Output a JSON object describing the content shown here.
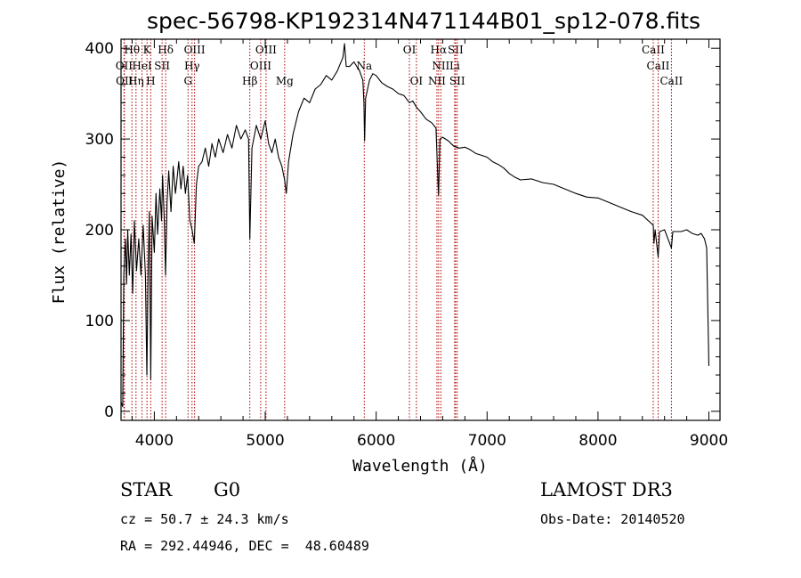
{
  "chart_data": {
    "type": "line",
    "title": "spec-56798-KP192314N471144B01_sp12-078.fits",
    "xlabel": "Wavelength (Å)",
    "ylabel": "Flux (relative)",
    "xlim": [
      3700,
      9100
    ],
    "ylim": [
      -10,
      410
    ],
    "x_ticks": [
      4000,
      5000,
      6000,
      7000,
      8000,
      9000
    ],
    "y_ticks": [
      0,
      100,
      200,
      300,
      400
    ],
    "series": [
      {
        "name": "flux",
        "points": [
          [
            3700,
            10
          ],
          [
            3715,
            5
          ],
          [
            3725,
            150
          ],
          [
            3740,
            190
          ],
          [
            3750,
            140
          ],
          [
            3760,
            200
          ],
          [
            3775,
            150
          ],
          [
            3790,
            195
          ],
          [
            3805,
            130
          ],
          [
            3820,
            210
          ],
          [
            3840,
            155
          ],
          [
            3860,
            190
          ],
          [
            3880,
            150
          ],
          [
            3900,
            205
          ],
          [
            3920,
            150
          ],
          [
            3933,
            40
          ],
          [
            3945,
            160
          ],
          [
            3955,
            220
          ],
          [
            3968,
            35
          ],
          [
            3980,
            215
          ],
          [
            4000,
            175
          ],
          [
            4015,
            240
          ],
          [
            4030,
            195
          ],
          [
            4050,
            245
          ],
          [
            4065,
            210
          ],
          [
            4075,
            260
          ],
          [
            4090,
            210
          ],
          [
            4101,
            150
          ],
          [
            4115,
            230
          ],
          [
            4130,
            265
          ],
          [
            4150,
            220
          ],
          [
            4170,
            270
          ],
          [
            4190,
            240
          ],
          [
            4200,
            250
          ],
          [
            4220,
            275
          ],
          [
            4240,
            245
          ],
          [
            4260,
            270
          ],
          [
            4280,
            240
          ],
          [
            4300,
            260
          ],
          [
            4320,
            210
          ],
          [
            4340,
            200
          ],
          [
            4360,
            185
          ],
          [
            4380,
            250
          ],
          [
            4400,
            270
          ],
          [
            4430,
            275
          ],
          [
            4460,
            290
          ],
          [
            4490,
            270
          ],
          [
            4520,
            295
          ],
          [
            4550,
            280
          ],
          [
            4580,
            300
          ],
          [
            4620,
            285
          ],
          [
            4660,
            305
          ],
          [
            4700,
            290
          ],
          [
            4740,
            315
          ],
          [
            4780,
            300
          ],
          [
            4820,
            310
          ],
          [
            4850,
            300
          ],
          [
            4861,
            190
          ],
          [
            4880,
            290
          ],
          [
            4920,
            315
          ],
          [
            4960,
            300
          ],
          [
            5000,
            320
          ],
          [
            5030,
            295
          ],
          [
            5060,
            285
          ],
          [
            5090,
            300
          ],
          [
            5120,
            280
          ],
          [
            5150,
            270
          ],
          [
            5175,
            255
          ],
          [
            5190,
            240
          ],
          [
            5210,
            275
          ],
          [
            5250,
            305
          ],
          [
            5300,
            330
          ],
          [
            5350,
            345
          ],
          [
            5400,
            340
          ],
          [
            5450,
            355
          ],
          [
            5500,
            360
          ],
          [
            5550,
            370
          ],
          [
            5600,
            365
          ],
          [
            5650,
            375
          ],
          [
            5700,
            390
          ],
          [
            5715,
            405
          ],
          [
            5730,
            380
          ],
          [
            5760,
            380
          ],
          [
            5800,
            385
          ],
          [
            5850,
            375
          ],
          [
            5880,
            365
          ],
          [
            5890,
            340
          ],
          [
            5896,
            298
          ],
          [
            5905,
            345
          ],
          [
            5940,
            365
          ],
          [
            5970,
            372
          ],
          [
            6000,
            370
          ],
          [
            6050,
            362
          ],
          [
            6100,
            358
          ],
          [
            6150,
            355
          ],
          [
            6200,
            350
          ],
          [
            6250,
            348
          ],
          [
            6300,
            340
          ],
          [
            6330,
            342
          ],
          [
            6363,
            335
          ],
          [
            6400,
            330
          ],
          [
            6450,
            322
          ],
          [
            6500,
            318
          ],
          [
            6540,
            312
          ],
          [
            6560,
            245
          ],
          [
            6563,
            238
          ],
          [
            6575,
            300
          ],
          [
            6600,
            302
          ],
          [
            6650,
            298
          ],
          [
            6700,
            292
          ],
          [
            6750,
            290
          ],
          [
            6800,
            291
          ],
          [
            6850,
            288
          ],
          [
            6900,
            284
          ],
          [
            6950,
            282
          ],
          [
            7000,
            280
          ],
          [
            7050,
            275
          ],
          [
            7100,
            272
          ],
          [
            7150,
            268
          ],
          [
            7200,
            262
          ],
          [
            7250,
            258
          ],
          [
            7300,
            255
          ],
          [
            7400,
            256
          ],
          [
            7500,
            252
          ],
          [
            7600,
            250
          ],
          [
            7700,
            245
          ],
          [
            7800,
            240
          ],
          [
            7900,
            236
          ],
          [
            8000,
            235
          ],
          [
            8100,
            230
          ],
          [
            8200,
            225
          ],
          [
            8300,
            220
          ],
          [
            8400,
            216
          ],
          [
            8498,
            205
          ],
          [
            8505,
            185
          ],
          [
            8515,
            200
          ],
          [
            8542,
            170
          ],
          [
            8555,
            198
          ],
          [
            8600,
            200
          ],
          [
            8662,
            180
          ],
          [
            8675,
            198
          ],
          [
            8750,
            198
          ],
          [
            8800,
            200
          ],
          [
            8850,
            196
          ],
          [
            8900,
            194
          ],
          [
            8930,
            196
          ],
          [
            8960,
            190
          ],
          [
            8980,
            180
          ],
          [
            9000,
            50
          ]
        ]
      }
    ],
    "line_markers": [
      {
        "label": "Hθ",
        "x": 3798,
        "row": 1
      },
      {
        "label": "K",
        "x": 3934,
        "row": 1
      },
      {
        "label": "Hδ",
        "x": 4102,
        "row": 1
      },
      {
        "label": "OIII",
        "x": 4363,
        "row": 1
      },
      {
        "label": "OIII",
        "x": 5007,
        "row": 1
      },
      {
        "label": "OI",
        "x": 6300,
        "row": 1
      },
      {
        "label": "Hα",
        "x": 6563,
        "row": 1
      },
      {
        "label": "SII",
        "x": 6716,
        "row": 1
      },
      {
        "label": "CaII",
        "x": 8498,
        "row": 1
      },
      {
        "label": "OII",
        "x": 3727,
        "row": 2
      },
      {
        "label": "HeI",
        "x": 3889,
        "row": 2
      },
      {
        "label": "SII",
        "x": 4070,
        "row": 2
      },
      {
        "label": "Hγ",
        "x": 4340,
        "row": 2
      },
      {
        "label": "OIII",
        "x": 4959,
        "row": 2
      },
      {
        "label": "Na",
        "x": 5893,
        "row": 2
      },
      {
        "label": "NII",
        "x": 6583,
        "row": 2
      },
      {
        "label": "Li",
        "x": 6708,
        "row": 2
      },
      {
        "label": "CaII",
        "x": 8542,
        "row": 2
      },
      {
        "label": "OII",
        "x": 3730,
        "row": 3
      },
      {
        "label": "Hη",
        "x": 3835,
        "row": 3
      },
      {
        "label": "H",
        "x": 3968,
        "row": 3
      },
      {
        "label": "G",
        "x": 4304,
        "row": 3
      },
      {
        "label": "Hβ",
        "x": 4861,
        "row": 3
      },
      {
        "label": "Mg",
        "x": 5175,
        "row": 3
      },
      {
        "label": "OI",
        "x": 6363,
        "row": 3
      },
      {
        "label": "NII",
        "x": 6548,
        "row": 3
      },
      {
        "label": "SII",
        "x": 6731,
        "row": 3
      },
      {
        "label": "CaII",
        "x": 8662,
        "row": 3
      }
    ],
    "colors": {
      "spectrum": "#000000",
      "markers": "#b00000",
      "axes": "#000000"
    }
  },
  "info": {
    "class": "STAR",
    "subclass": "G0",
    "survey": "LAMOST DR3",
    "cz": "cz = 50.7 ± 24.3 km/s",
    "obs_date": "Obs-Date: 20140520",
    "coords": "RA = 292.44946, DEC =  48.60489"
  }
}
